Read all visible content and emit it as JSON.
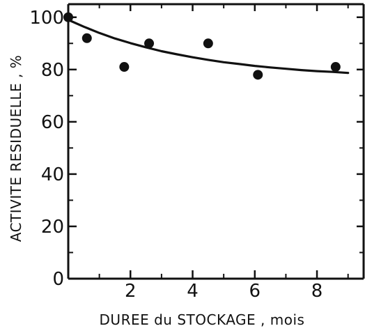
{
  "chart_data": {
    "type": "scatter",
    "title": "",
    "xlabel": "DUREE du STOCKAGE , mois",
    "ylabel": "ACTIVITE RESIDUELLE , %",
    "xlim": [
      0,
      9.5
    ],
    "ylim": [
      0,
      105
    ],
    "x_ticks": [
      2,
      4,
      6,
      8
    ],
    "x_tick_labels": [
      "2",
      "4",
      "6",
      "8"
    ],
    "x_minor_ticks": [
      1,
      3,
      5,
      7,
      9
    ],
    "y_ticks": [
      0,
      20,
      40,
      60,
      80,
      100
    ],
    "y_tick_labels": [
      "0",
      "20",
      "40",
      "60",
      "80",
      "100"
    ],
    "y_minor_ticks": [
      10,
      30,
      50,
      70,
      90
    ],
    "grid": false,
    "legend": "none",
    "series": [
      {
        "type": "scatter",
        "x": [
          0.0,
          0.6,
          1.8,
          2.6,
          4.5,
          6.1,
          8.6
        ],
        "y": [
          100,
          92,
          81,
          90,
          90,
          78,
          81
        ]
      },
      {
        "type": "line",
        "x": [
          0.0,
          0.5,
          1.0,
          1.5,
          2.0,
          2.5,
          3.0,
          3.5,
          4.0,
          4.5,
          5.0,
          5.5,
          6.0,
          6.5,
          7.0,
          7.5,
          8.0,
          8.5,
          9.0
        ],
        "y": [
          99.0,
          96.4,
          94.0,
          91.9,
          90.1,
          88.5,
          87.0,
          85.8,
          84.7,
          83.7,
          82.8,
          82.1,
          81.4,
          80.8,
          80.3,
          79.8,
          79.4,
          79.1,
          78.7
        ]
      }
    ],
    "colors": {
      "ink": "#111111",
      "background": "#ffffff"
    }
  }
}
